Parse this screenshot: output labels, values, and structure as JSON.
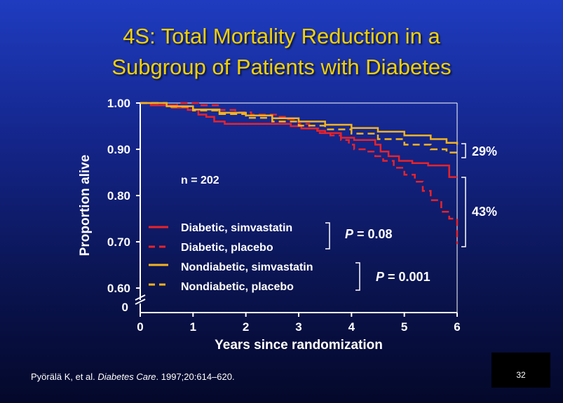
{
  "title_lines": [
    "4S: Total Mortality Reduction in a",
    "Subgroup of Patients with Diabetes"
  ],
  "citation": {
    "authors": "Pyörälä K, et al.",
    "journal": "Diabetes Care",
    "details": "1997;20:614–620."
  },
  "slide_number": "32",
  "colors": {
    "title": "#f2d000",
    "diabetic": "#e8232a",
    "nondiabetic": "#f5b31e",
    "text": "#ffffff"
  },
  "chart_data": {
    "type": "line",
    "xlabel": "Years since randomization",
    "ylabel": "Proportion alive",
    "xlim": [
      0,
      6
    ],
    "ylim": [
      0.6,
      1.0
    ],
    "x_ticks": [
      "0",
      "1",
      "2",
      "3",
      "4",
      "5",
      "6"
    ],
    "y_ticks": [
      "1.00",
      "0.90",
      "0.80",
      "0.70",
      "0.60"
    ],
    "axis_break_label": "0",
    "axis_break": true,
    "grid": false,
    "legend_placement": "bottom-left inside",
    "series": [
      {
        "name": "Diabetic, simvastatin",
        "color": "#e8232a",
        "style": "solid",
        "x": [
          0,
          0.2,
          0.5,
          0.6,
          0.9,
          1.1,
          1.25,
          1.4,
          1.6,
          1.85,
          2.1,
          2.4,
          2.7,
          2.85,
          3.05,
          3.2,
          3.35,
          3.5,
          3.65,
          3.8,
          4.05,
          4.3,
          4.45,
          4.55,
          4.7,
          4.9,
          5.15,
          5.45,
          5.7,
          5.85,
          6.0
        ],
        "values": [
          1.0,
          0.995,
          0.995,
          0.99,
          0.985,
          0.975,
          0.97,
          0.96,
          0.955,
          0.955,
          0.955,
          0.955,
          0.955,
          0.95,
          0.945,
          0.945,
          0.94,
          0.935,
          0.935,
          0.925,
          0.92,
          0.92,
          0.91,
          0.895,
          0.885,
          0.875,
          0.87,
          0.865,
          0.865,
          0.84,
          0.84
        ]
      },
      {
        "name": "Diabetic, placebo",
        "color": "#e8232a",
        "style": "dashed",
        "x": [
          0,
          0.4,
          0.7,
          0.9,
          1.1,
          1.5,
          1.8,
          2.1,
          2.4,
          2.6,
          2.8,
          3.0,
          3.2,
          3.4,
          3.6,
          3.8,
          3.95,
          4.05,
          4.25,
          4.45,
          4.6,
          4.8,
          5.0,
          5.2,
          5.35,
          5.5,
          5.7,
          5.85,
          6.0
        ],
        "values": [
          1.0,
          0.995,
          1.0,
          1.0,
          0.995,
          0.985,
          0.98,
          0.975,
          0.975,
          0.97,
          0.965,
          0.955,
          0.945,
          0.935,
          0.93,
          0.92,
          0.91,
          0.9,
          0.895,
          0.885,
          0.875,
          0.86,
          0.845,
          0.83,
          0.81,
          0.79,
          0.765,
          0.75,
          0.695
        ]
      },
      {
        "name": "Nondiabetic, simvastatin",
        "color": "#f5b31e",
        "style": "solid",
        "x": [
          0,
          0.5,
          1.0,
          1.5,
          2.0,
          2.5,
          3.0,
          3.5,
          4.0,
          4.5,
          5.0,
          5.5,
          5.8,
          6.0
        ],
        "values": [
          1.0,
          0.993,
          0.986,
          0.979,
          0.973,
          0.967,
          0.96,
          0.953,
          0.946,
          0.938,
          0.93,
          0.922,
          0.914,
          0.91
        ]
      },
      {
        "name": "Nondiabetic, placebo",
        "color": "#f5b31e",
        "style": "dashed",
        "x": [
          0,
          0.5,
          1.0,
          1.5,
          2.0,
          2.5,
          3.0,
          3.5,
          4.0,
          4.5,
          5.0,
          5.5,
          5.8,
          6.0
        ],
        "values": [
          1.0,
          0.992,
          0.984,
          0.976,
          0.968,
          0.96,
          0.951,
          0.943,
          0.934,
          0.922,
          0.91,
          0.9,
          0.893,
          0.887
        ]
      }
    ],
    "annotations": {
      "n_label": "n = 202",
      "p_diabetic_prefix": "P",
      "p_diabetic_value": " = 0.08",
      "p_nondiabetic_prefix": "P",
      "p_nondiabetic_value": " = 0.001",
      "reduction_nondiabetic": "29%",
      "reduction_diabetic": "43%"
    }
  }
}
